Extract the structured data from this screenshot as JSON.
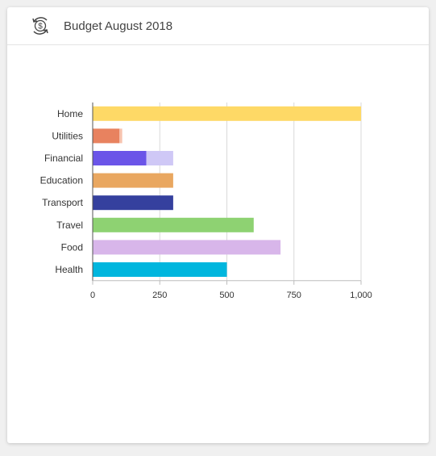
{
  "header": {
    "title": "Budget August 2018",
    "icon": "dollar-cycle-icon"
  },
  "chart_data": {
    "type": "bar",
    "orientation": "horizontal",
    "stacked": true,
    "categories": [
      "Home",
      "Utilities",
      "Financial",
      "Education",
      "Transport",
      "Travel",
      "Food",
      "Health"
    ],
    "series": [
      {
        "values": [
          1000,
          100,
          200,
          300,
          300,
          600,
          700,
          500
        ],
        "colors": [
          "#fed966",
          "#e8825f",
          "#6b55e8",
          "#e9a760",
          "#35409e",
          "#8ed272",
          "#d8b6ea",
          "#00b6de"
        ]
      },
      {
        "values": [
          0,
          10,
          100,
          0,
          0,
          0,
          0,
          0
        ],
        "colors": [
          "#fed966",
          "#f7c3ae",
          "#cfc8f6",
          "#e9a760",
          "#35409e",
          "#8ed272",
          "#d8b6ea",
          "#00b6de"
        ]
      }
    ],
    "xlim": [
      0,
      1000
    ],
    "xticks": [
      0,
      250,
      500,
      750,
      1000
    ],
    "xtick_labels": [
      "0",
      "250",
      "500",
      "750",
      "1,000"
    ],
    "grid": true,
    "legend": "none"
  }
}
